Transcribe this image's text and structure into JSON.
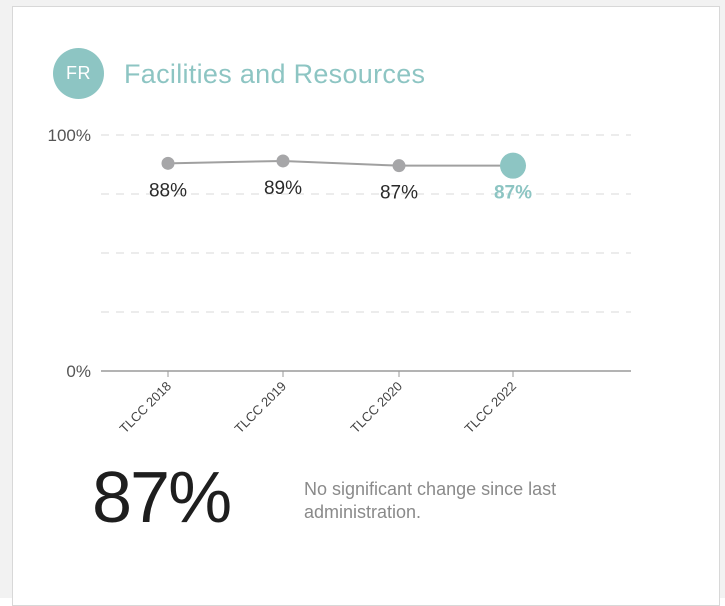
{
  "header": {
    "badge": "FR",
    "title": "Facilities and Resources"
  },
  "summary": {
    "value": "87%",
    "note": "No significant change since last administration."
  },
  "colors": {
    "accent": "#8dc5c3",
    "series": "#a6a6a8",
    "line": "#a0a0a0",
    "text": "#1e1e1e"
  },
  "chart_data": {
    "type": "line",
    "categories": [
      "TLCC 2018",
      "TLCC 2019",
      "TLCC 2020",
      "TLCC 2022"
    ],
    "values": [
      88,
      89,
      87,
      87
    ],
    "data_labels": [
      "88%",
      "89%",
      "87%",
      "87%"
    ],
    "ylim": [
      0,
      100
    ],
    "ytick_labels": [
      "0%",
      "100%"
    ],
    "grid": true,
    "highlight_last": true
  }
}
